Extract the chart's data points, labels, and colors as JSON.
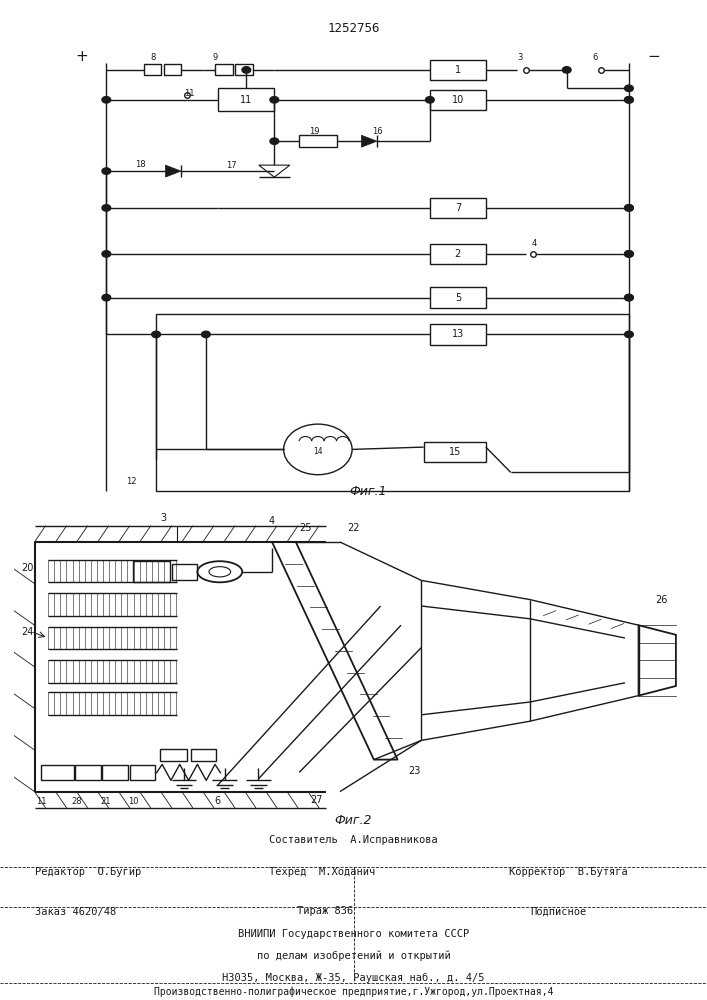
{
  "title": "1252756",
  "fig1_label": "Фиг.1",
  "fig2_label": "Фиг.2",
  "footer_line0": "Составитель  А.Исправникова",
  "footer_line1a": "Редактор  О.Бугир",
  "footer_line1b": "Техред  М.Ходанич",
  "footer_line1c": "Корректор  В.Бутяга",
  "footer_line2a": "Заказ 4620/48",
  "footer_line2b": "Тираж 836",
  "footer_line2c": "Подписное",
  "footer_line3": "ВНИИПИ Государственного комитета СССР",
  "footer_line4": "по делам изобретений и открытий",
  "footer_line5": "Н3035, Москва, Ж-35, Раушская наб., д. 4/5",
  "footer_line6": "Производственно-полиграфическое предприятие,г.Ужгород,ул.Проектная,4",
  "bg_color": "#ffffff",
  "line_color": "#1a1a1a"
}
